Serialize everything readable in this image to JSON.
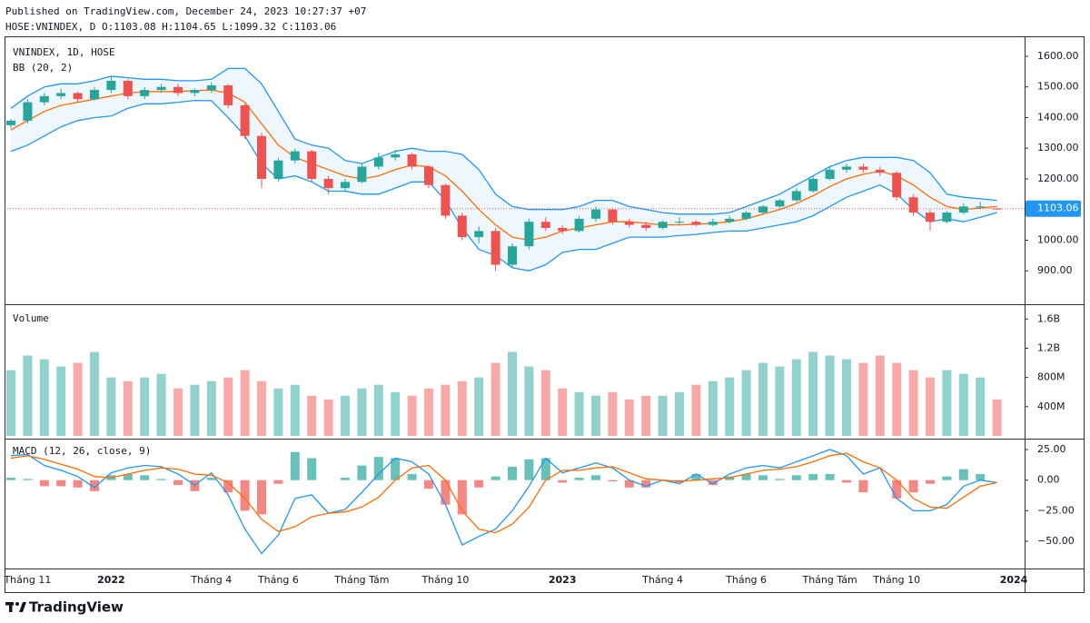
{
  "header": {
    "published": "Published on TradingView.com, December 24, 2023 10:27:37 +07",
    "ohlc": "HOSE:VNINDEX, D O:1103.08 H:1104.65 L:1099.32 C:1103.06"
  },
  "footer": {
    "brand": "TradingView"
  },
  "chart_data": {
    "type": "candlestick",
    "title": "VNINDEX, 1D, HOSE",
    "categories": [
      null,
      "Tháng 11",
      null,
      null,
      null,
      null,
      "2022",
      null,
      null,
      null,
      null,
      null,
      "Tháng 4",
      null,
      null,
      null,
      "Tháng 6",
      null,
      null,
      null,
      null,
      "Tháng Tám",
      null,
      null,
      null,
      null,
      "Tháng 10",
      null,
      null,
      null,
      null,
      null,
      null,
      "2023",
      null,
      null,
      null,
      null,
      null,
      "Tháng 4",
      null,
      null,
      null,
      null,
      "Tháng 6",
      null,
      null,
      null,
      null,
      "Tháng Tám",
      null,
      null,
      null,
      "Tháng 10",
      null,
      null,
      null,
      null,
      null,
      null,
      "2024"
    ],
    "open": [
      1375,
      1390,
      1450,
      1470,
      1480,
      1460,
      1490,
      1520,
      1470,
      1490,
      1500,
      1480,
      1490,
      1505,
      1440,
      1340,
      1200,
      1260,
      1290,
      1200,
      1170,
      1190,
      1240,
      1270,
      1280,
      1240,
      1180,
      1080,
      1010,
      1030,
      920,
      980,
      1060,
      1040,
      1030,
      1070,
      1100,
      1060,
      1050,
      1040,
      1060,
      1060,
      1050,
      1060,
      1070,
      1090,
      1110,
      1130,
      1160,
      1200,
      1230,
      1240,
      1230,
      1220,
      1140,
      1090,
      1060,
      1090,
      1110,
      1103.08,
      null
    ],
    "high": [
      1395,
      1460,
      1480,
      1495,
      1485,
      1500,
      1535,
      1525,
      1500,
      1510,
      1510,
      1495,
      1515,
      1510,
      1445,
      1350,
      1270,
      1300,
      1295,
      1210,
      1200,
      1250,
      1285,
      1295,
      1285,
      1245,
      1185,
      1090,
      1045,
      1040,
      990,
      1070,
      1075,
      1050,
      1080,
      1110,
      1105,
      1070,
      1060,
      1065,
      1075,
      1065,
      1070,
      1080,
      1095,
      1115,
      1135,
      1170,
      1210,
      1240,
      1250,
      1250,
      1240,
      1225,
      1150,
      1100,
      1095,
      1120,
      1125,
      1104.65,
      null
    ],
    "low": [
      1365,
      1380,
      1440,
      1460,
      1450,
      1455,
      1480,
      1460,
      1460,
      1480,
      1470,
      1470,
      1480,
      1430,
      1330,
      1170,
      1190,
      1250,
      1190,
      1150,
      1160,
      1185,
      1230,
      1260,
      1230,
      1170,
      1070,
      1000,
      990,
      900,
      910,
      970,
      1030,
      1020,
      1025,
      1060,
      1050,
      1040,
      1030,
      1035,
      1050,
      1045,
      1045,
      1055,
      1065,
      1085,
      1105,
      1125,
      1155,
      1195,
      1220,
      1220,
      1210,
      1130,
      1080,
      1030,
      1055,
      1085,
      1100,
      1099.32,
      null
    ],
    "close": [
      1390,
      1450,
      1470,
      1480,
      1460,
      1490,
      1520,
      1470,
      1490,
      1500,
      1480,
      1490,
      1505,
      1440,
      1340,
      1200,
      1260,
      1290,
      1200,
      1170,
      1190,
      1240,
      1270,
      1280,
      1240,
      1180,
      1080,
      1010,
      1030,
      920,
      980,
      1060,
      1040,
      1030,
      1070,
      1100,
      1060,
      1050,
      1040,
      1060,
      1060,
      1050,
      1060,
      1070,
      1090,
      1110,
      1130,
      1160,
      1200,
      1230,
      1240,
      1230,
      1220,
      1140,
      1090,
      1060,
      1090,
      1110,
      1110,
      1103.06,
      null
    ],
    "up_color": "#26a69a",
    "down_color": "#ef5350",
    "ylim": [
      800,
      1665
    ],
    "yticks": [
      {
        "value": 900,
        "label": "900.00"
      },
      {
        "value": 1000,
        "label": "1000.00"
      },
      {
        "value": 1100,
        "label": "1100.00"
      },
      {
        "value": 1200,
        "label": "1200.00"
      },
      {
        "value": 1300,
        "label": "1300.00"
      },
      {
        "value": 1400,
        "label": "1400.00"
      },
      {
        "value": 1500,
        "label": "1500.00"
      },
      {
        "value": 1600,
        "label": "1600.00"
      }
    ],
    "last_price": 1103.06,
    "last_price_color": "#2196f3",
    "grid": false,
    "bb": {
      "name": "BB (20, 2)",
      "band_color": "#2196f3",
      "basis_color": "#ff6d00",
      "fill": "rgba(33,150,243,0.08)",
      "upper": [
        1430,
        1470,
        1500,
        1510,
        1510,
        1520,
        1535,
        1530,
        1525,
        1525,
        1520,
        1520,
        1525,
        1560,
        1560,
        1510,
        1420,
        1330,
        1310,
        1300,
        1260,
        1250,
        1270,
        1290,
        1300,
        1290,
        1290,
        1280,
        1230,
        1150,
        1110,
        1100,
        1100,
        1100,
        1110,
        1130,
        1130,
        1110,
        1100,
        1090,
        1085,
        1085,
        1085,
        1090,
        1110,
        1130,
        1150,
        1180,
        1210,
        1240,
        1260,
        1270,
        1270,
        1270,
        1260,
        1220,
        1150,
        1140,
        1135,
        1130,
        null
      ],
      "basis": [
        1360,
        1390,
        1420,
        1440,
        1450,
        1460,
        1470,
        1480,
        1485,
        1485,
        1485,
        1488,
        1490,
        1480,
        1450,
        1380,
        1310,
        1270,
        1250,
        1230,
        1210,
        1200,
        1210,
        1230,
        1245,
        1240,
        1210,
        1160,
        1100,
        1050,
        1010,
        1000,
        1010,
        1030,
        1040,
        1050,
        1060,
        1060,
        1055,
        1050,
        1050,
        1052,
        1055,
        1060,
        1070,
        1085,
        1100,
        1120,
        1145,
        1175,
        1200,
        1215,
        1225,
        1210,
        1180,
        1140,
        1110,
        1100,
        1105,
        1110,
        null
      ],
      "lower": [
        1290,
        1310,
        1340,
        1370,
        1390,
        1400,
        1405,
        1430,
        1445,
        1445,
        1450,
        1456,
        1455,
        1400,
        1340,
        1250,
        1200,
        1210,
        1190,
        1160,
        1160,
        1150,
        1150,
        1170,
        1190,
        1190,
        1130,
        1040,
        970,
        950,
        910,
        900,
        920,
        960,
        970,
        970,
        990,
        1010,
        1010,
        1010,
        1015,
        1019,
        1025,
        1030,
        1030,
        1040,
        1050,
        1060,
        1080,
        1110,
        1140,
        1160,
        1180,
        1150,
        1100,
        1060,
        1070,
        1060,
        1075,
        1090,
        null
      ]
    },
    "volume": {
      "name": "Volume",
      "up_color": "rgba(38,166,154,0.5)",
      "down_color": "rgba(239,83,80,0.5)",
      "values": [
        900000000,
        1100000000,
        1050000000,
        950000000,
        1000000000,
        1150000000,
        800000000,
        750000000,
        800000000,
        850000000,
        650000000,
        700000000,
        750000000,
        800000000,
        900000000,
        750000000,
        650000000,
        700000000,
        550000000,
        500000000,
        550000000,
        650000000,
        700000000,
        600000000,
        550000000,
        650000000,
        700000000,
        750000000,
        800000000,
        1000000000,
        1150000000,
        950000000,
        900000000,
        650000000,
        600000000,
        550000000,
        600000000,
        500000000,
        550000000,
        550000000,
        600000000,
        700000000,
        750000000,
        800000000,
        900000000,
        1000000000,
        950000000,
        1050000000,
        1150000000,
        1100000000,
        1050000000,
        1000000000,
        1100000000,
        1000000000,
        900000000,
        800000000,
        900000000,
        850000000,
        800000000,
        500000000,
        null
      ],
      "ylim": [
        0,
        1740000000
      ],
      "yticks": [
        {
          "value": 400000000,
          "label": "400M"
        },
        {
          "value": 800000000,
          "label": "800M"
        },
        {
          "value": 1200000000,
          "label": "1.2B"
        },
        {
          "value": 1600000000,
          "label": "1.6B"
        }
      ]
    },
    "macd": {
      "name": "MACD (12, 26, close, 9)",
      "macd_color": "#2196f3",
      "signal_color": "#ff6d00",
      "hist_up_color": "rgba(38,166,154,0.7)",
      "hist_down_color": "rgba(239,83,80,0.7)",
      "macd": [
        20,
        21,
        12,
        8,
        3,
        -6,
        6,
        10,
        12,
        11,
        5,
        -4,
        6,
        -12,
        -40,
        -60,
        -45,
        -15,
        -12,
        -27,
        -24,
        -10,
        5,
        18,
        15,
        5,
        -20,
        -53,
        -46,
        -40,
        -25,
        -5,
        18,
        6,
        10,
        14,
        10,
        0,
        -5,
        0,
        -3,
        5,
        -3,
        5,
        10,
        12,
        10,
        15,
        20,
        25,
        20,
        5,
        10,
        -15,
        -25,
        -25,
        -20,
        -5,
        0,
        -2,
        null
      ],
      "signal": [
        18,
        20,
        17,
        13,
        9,
        3,
        2,
        5,
        8,
        10,
        9,
        5,
        4,
        -2,
        -15,
        -32,
        -42,
        -38,
        -30,
        -27,
        -26,
        -22,
        -14,
        0,
        10,
        12,
        0,
        -25,
        -40,
        -43,
        -36,
        -22,
        0,
        8,
        8,
        10,
        11,
        6,
        1,
        0,
        -1,
        0,
        1,
        2,
        5,
        8,
        9,
        11,
        15,
        20,
        22,
        15,
        10,
        0,
        -15,
        -22,
        -23,
        -14,
        -5,
        -2,
        null
      ],
      "histogram": [
        2,
        1,
        -5,
        -5,
        -6,
        -9,
        4,
        5,
        4,
        1,
        -4,
        -9,
        2,
        -10,
        -25,
        -28,
        -3,
        23,
        18,
        0,
        2,
        12,
        19,
        18,
        5,
        -7,
        -20,
        -28,
        -6,
        3,
        11,
        17,
        18,
        -2,
        2,
        4,
        -1,
        -6,
        -6,
        0,
        -2,
        5,
        -4,
        3,
        5,
        4,
        1,
        4,
        5,
        5,
        -2,
        -10,
        0,
        -15,
        -10,
        -3,
        3,
        9,
        5,
        0,
        null
      ],
      "ylim": [
        -71.5,
        31.7
      ],
      "yticks": [
        {
          "value": -50,
          "label": "−50.00"
        },
        {
          "value": -25,
          "label": "−25.00"
        },
        {
          "value": 0,
          "label": "0.00"
        },
        {
          "value": 25,
          "label": "25.00"
        }
      ]
    }
  }
}
